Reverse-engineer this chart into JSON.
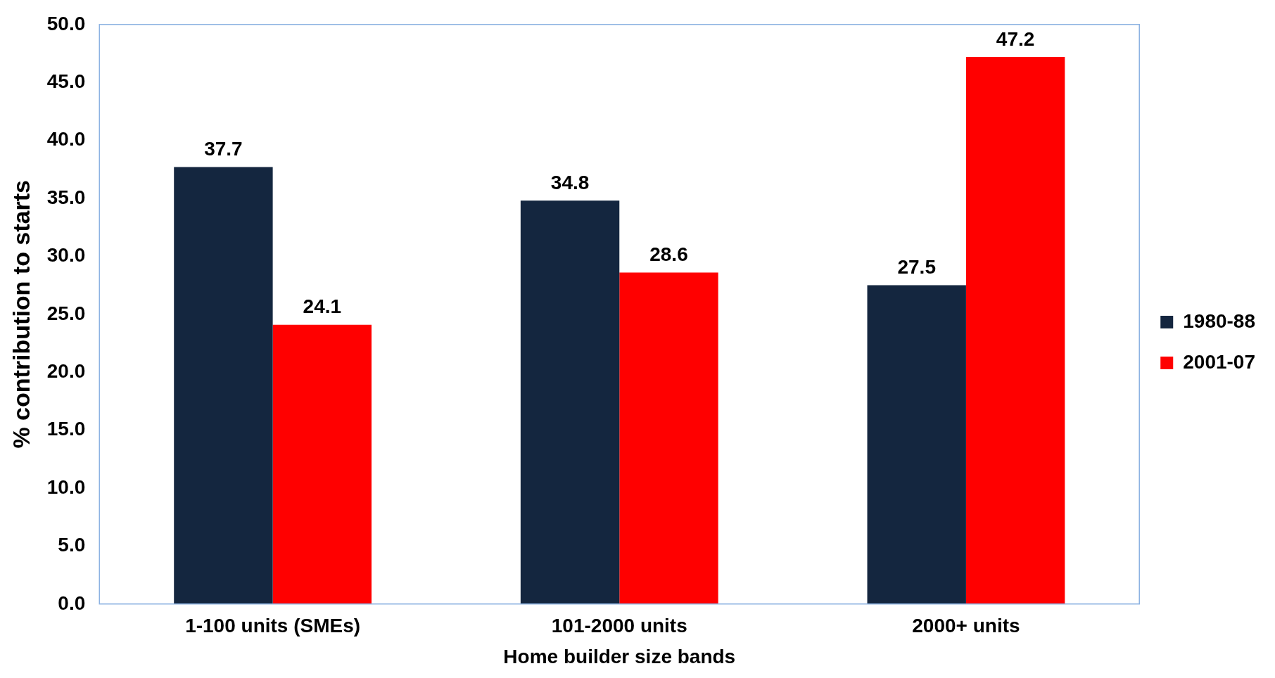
{
  "chart_data": {
    "type": "bar",
    "xlabel": "Home builder size bands",
    "ylabel": "% contribution to starts",
    "categories": [
      "1-100 units (SMEs)",
      "101-2000 units",
      "2000+ units"
    ],
    "series": [
      {
        "name": "1980-88",
        "color": "#14263f",
        "values": [
          37.7,
          34.8,
          27.5
        ]
      },
      {
        "name": "2001-07",
        "color": "#ff0000",
        "values": [
          24.1,
          28.6,
          47.2
        ]
      }
    ],
    "ylim": [
      0,
      50
    ],
    "yticks": [
      {
        "value": 0,
        "label": "0.0"
      },
      {
        "value": 5,
        "label": "5.0"
      },
      {
        "value": 10,
        "label": "10.0"
      },
      {
        "value": 15,
        "label": "15.0"
      },
      {
        "value": 20,
        "label": "20.0"
      },
      {
        "value": 25,
        "label": "25.0"
      },
      {
        "value": 30,
        "label": "30.0"
      },
      {
        "value": 35,
        "label": "35.0"
      },
      {
        "value": 40,
        "label": "40.0"
      },
      {
        "value": 45,
        "label": "45.0"
      },
      {
        "value": 50,
        "label": "50.0"
      }
    ],
    "grid": false,
    "legend": "right",
    "data_labels": true
  }
}
